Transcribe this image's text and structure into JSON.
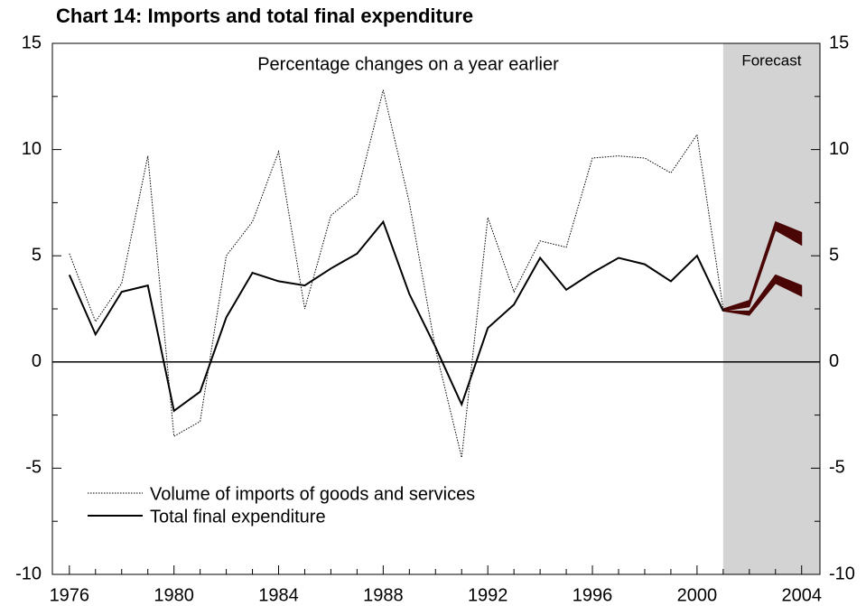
{
  "chart_data": {
    "type": "line",
    "title": "Chart 14: Imports and total final expenditure",
    "subtitle": "Percentage changes on a year earlier",
    "forecast_label": "Forecast",
    "forecast_start": 2001,
    "forecast_color": "#d3d3d3",
    "x": [
      1976,
      1977,
      1978,
      1979,
      1980,
      1981,
      1982,
      1983,
      1984,
      1985,
      1986,
      1987,
      1988,
      1989,
      1990,
      1991,
      1992,
      1993,
      1994,
      1995,
      1996,
      1997,
      1998,
      1999,
      2000,
      2001
    ],
    "series": [
      {
        "name": "Volume of imports of goods and services",
        "color": "#000000",
        "dotted": true,
        "values": [
          5.1,
          1.9,
          3.7,
          9.7,
          -3.5,
          -2.8,
          5.0,
          6.6,
          9.9,
          2.5,
          6.9,
          7.9,
          12.8,
          7.5,
          0.6,
          -4.5,
          6.8,
          3.3,
          5.7,
          5.4,
          9.6,
          9.7,
          9.6,
          8.9,
          10.7,
          2.5
        ]
      },
      {
        "name": "Total final expenditure",
        "color": "#000000",
        "dotted": false,
        "values": [
          4.1,
          1.3,
          3.3,
          3.6,
          -2.3,
          -1.4,
          2.1,
          4.2,
          3.8,
          3.6,
          4.4,
          5.1,
          6.6,
          3.2,
          0.7,
          -2.0,
          1.6,
          2.7,
          4.9,
          3.4,
          4.2,
          4.9,
          4.6,
          3.8,
          5.0,
          2.4
        ]
      }
    ],
    "bands": [
      {
        "color": "#4a0505",
        "x": [
          2001,
          2002,
          2003,
          2004
        ],
        "upper": [
          2.5,
          2.9,
          6.6,
          6.1
        ],
        "lower": [
          2.4,
          2.6,
          6.2,
          5.5
        ]
      },
      {
        "color": "#4a0505",
        "x": [
          2001,
          2002,
          2003,
          2004
        ],
        "upper": [
          2.4,
          2.4,
          4.1,
          3.6
        ],
        "lower": [
          2.4,
          2.2,
          3.7,
          3.1
        ]
      }
    ],
    "xlim": [
      1975.35,
      2004.7
    ],
    "xticks": [
      1976,
      1980,
      1984,
      1988,
      1992,
      1996,
      2000,
      2004
    ],
    "xminor_ticks": [
      1977,
      1978,
      1979,
      1981,
      1982,
      1983,
      1985,
      1986,
      1987,
      1989,
      1990,
      1991,
      1993,
      1994,
      1995,
      1997,
      1998,
      1999,
      2001,
      2002,
      2003
    ],
    "ylim": [
      -10,
      15
    ],
    "yticks": [
      -10,
      -5,
      0,
      5,
      10,
      15
    ],
    "yminor_ticks": [
      -7.5,
      -2.5,
      2.5,
      7.5,
      12.5
    ],
    "y2lim": [
      -10,
      15
    ],
    "y2ticks": [
      -10,
      -5,
      0,
      5,
      10,
      15
    ]
  }
}
